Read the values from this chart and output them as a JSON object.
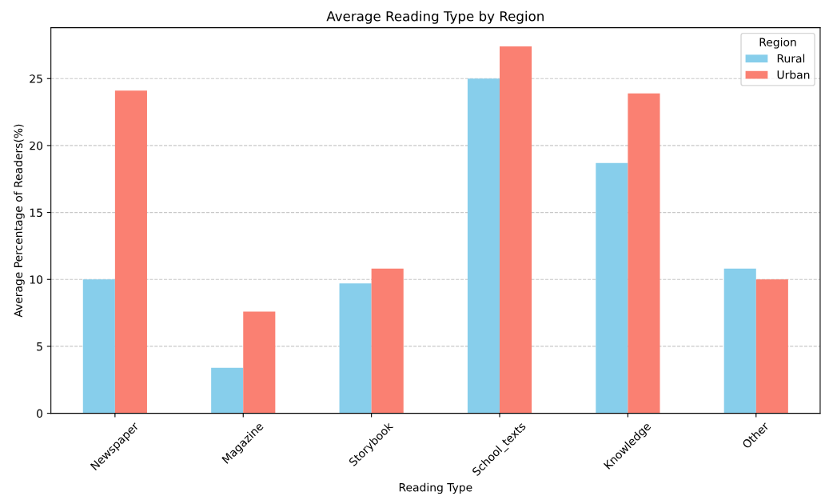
{
  "chart_data": {
    "type": "bar",
    "title": "Average Reading Type by Region",
    "xlabel": "Reading Type",
    "ylabel": "Average Percentage of Readers(%)",
    "legend_title": "Region",
    "categories": [
      "Newspaper",
      "Magazine",
      "Storybook",
      "School_texts",
      "Knowledge",
      "Other"
    ],
    "series": [
      {
        "name": "Rural",
        "color": "#87ceeb",
        "values": [
          10.0,
          3.4,
          9.7,
          25.0,
          18.7,
          10.8
        ]
      },
      {
        "name": "Urban",
        "color": "#fa8072",
        "values": [
          24.1,
          7.6,
          10.8,
          27.4,
          23.9,
          10.0
        ]
      }
    ],
    "ylim": [
      0,
      28.8
    ],
    "yticks": [
      0,
      5,
      10,
      15,
      20,
      25
    ],
    "grid": "y",
    "legend": "top right"
  }
}
